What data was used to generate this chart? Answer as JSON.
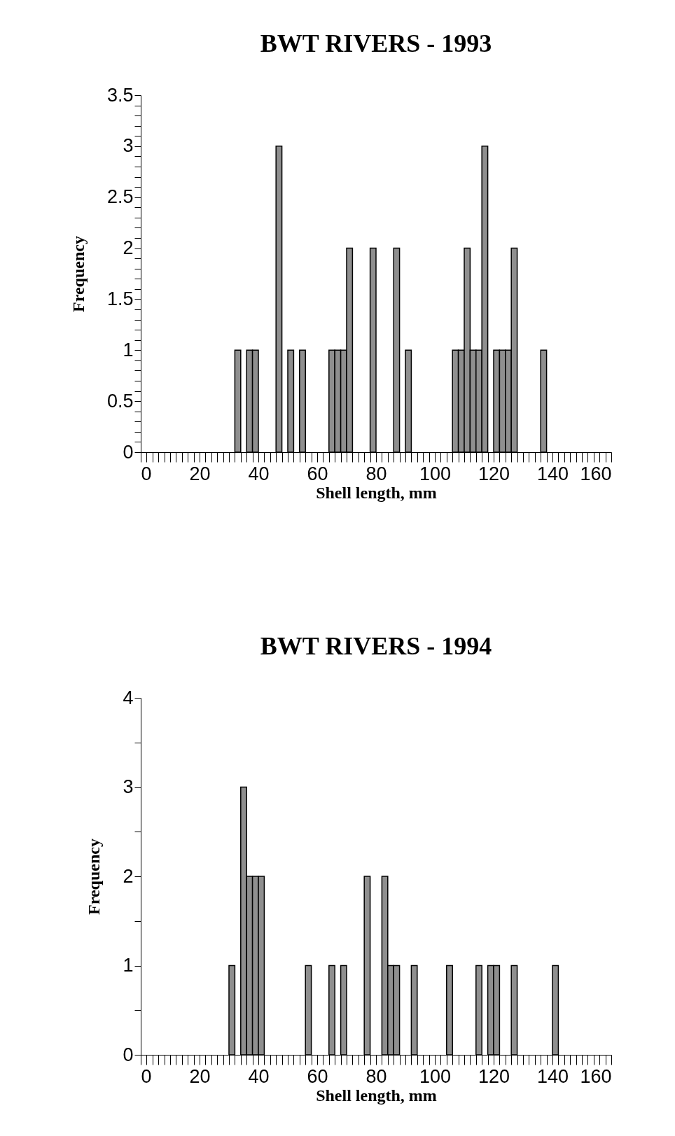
{
  "chart_data": [
    {
      "type": "histogram",
      "title": "BWT  RIVERS  -  1993",
      "xlabel": "Shell  length,  mm",
      "ylabel": "Frequency",
      "color": "#8f8f8f",
      "bins": [
        0,
        2,
        4,
        6,
        8,
        10,
        12,
        14,
        16,
        18,
        20,
        22,
        24,
        26,
        28,
        30,
        32,
        34,
        36,
        38,
        40,
        42,
        44,
        46,
        48,
        50,
        52,
        54,
        56,
        58,
        60,
        62,
        64,
        66,
        68,
        70,
        72,
        74,
        76,
        78,
        80,
        82,
        84,
        86,
        88,
        90,
        92,
        94,
        96,
        98,
        100,
        102,
        104,
        106,
        108,
        110,
        112,
        114,
        116,
        118,
        120,
        122,
        124,
        126,
        128,
        130,
        132,
        134,
        136,
        138,
        140,
        142,
        144,
        146,
        148,
        150,
        152,
        154,
        156,
        158,
        160
      ],
      "values": [
        0,
        0,
        0,
        0,
        0,
        0,
        0,
        0,
        0,
        0,
        0,
        0,
        0,
        0,
        0,
        0,
        1,
        0,
        1,
        1,
        0,
        0,
        0,
        3,
        0,
        1,
        0,
        1,
        0,
        0,
        0,
        0,
        1,
        1,
        1,
        2,
        0,
        0,
        0,
        2,
        0,
        0,
        0,
        2,
        0,
        1,
        0,
        0,
        0,
        0,
        0,
        0,
        0,
        1,
        1,
        2,
        1,
        1,
        3,
        0,
        1,
        1,
        1,
        2,
        0,
        0,
        0,
        0,
        1,
        0,
        0,
        0,
        0,
        0,
        0,
        0,
        0,
        0,
        0,
        0
      ],
      "xlim": [
        0,
        160
      ],
      "ylim": [
        0,
        3.5
      ],
      "xticks": [
        0,
        {
          "value": 2,
          "label": null
        },
        {
          "value": 4,
          "label": null
        },
        {
          "value": 6,
          "label": null
        },
        {
          "value": 8,
          "label": null
        },
        {
          "value": 10,
          "label": null
        },
        {
          "value": 12,
          "label": null
        },
        {
          "value": 14,
          "label": null
        },
        {
          "value": 16,
          "label": null
        },
        {
          "value": 18,
          "label": null
        },
        20,
        {
          "value": 22,
          "label": null
        },
        {
          "value": 24,
          "label": null
        },
        {
          "value": 26,
          "label": null
        },
        {
          "value": 28,
          "label": null
        },
        {
          "value": 30,
          "label": null
        },
        {
          "value": 32,
          "label": null
        },
        {
          "value": 34,
          "label": null
        },
        {
          "value": 36,
          "label": null
        },
        {
          "value": 38,
          "label": null
        },
        40,
        {
          "value": 42,
          "label": null
        },
        {
          "value": 44,
          "label": null
        },
        {
          "value": 46,
          "label": null
        },
        {
          "value": 48,
          "label": null
        },
        {
          "value": 50,
          "label": null
        },
        {
          "value": 52,
          "label": null
        },
        {
          "value": 54,
          "label": null
        },
        {
          "value": 56,
          "label": null
        },
        {
          "value": 58,
          "label": null
        },
        60,
        {
          "value": 62,
          "label": null
        },
        {
          "value": 64,
          "label": null
        },
        {
          "value": 66,
          "label": null
        },
        {
          "value": 68,
          "label": null
        },
        {
          "value": 70,
          "label": null
        },
        {
          "value": 72,
          "label": null
        },
        {
          "value": 74,
          "label": null
        },
        {
          "value": 76,
          "label": null
        },
        {
          "value": 78,
          "label": null
        },
        80,
        {
          "value": 82,
          "label": null
        },
        {
          "value": 84,
          "label": null
        },
        {
          "value": 86,
          "label": null
        },
        {
          "value": 88,
          "label": null
        },
        {
          "value": 90,
          "label": null
        },
        {
          "value": 92,
          "label": null
        },
        {
          "value": 94,
          "label": null
        },
        {
          "value": 96,
          "label": null
        },
        {
          "value": 98,
          "label": null
        },
        100,
        {
          "value": 102,
          "label": null
        },
        {
          "value": 104,
          "label": null
        },
        {
          "value": 106,
          "label": null
        },
        {
          "value": 108,
          "label": null
        },
        {
          "value": 110,
          "label": null
        },
        {
          "value": 112,
          "label": null
        },
        {
          "value": 114,
          "label": null
        },
        {
          "value": 116,
          "label": null
        },
        {
          "value": 118,
          "label": null
        },
        120,
        {
          "value": 122,
          "label": null
        },
        {
          "value": 124,
          "label": null
        },
        {
          "value": 126,
          "label": null
        },
        {
          "value": 128,
          "label": null
        },
        {
          "value": 130,
          "label": null
        },
        {
          "value": 132,
          "label": null
        },
        {
          "value": 134,
          "label": null
        },
        {
          "value": 136,
          "label": null
        },
        {
          "value": 138,
          "label": null
        },
        140,
        {
          "value": 142,
          "label": null
        },
        {
          "value": 144,
          "label": null
        },
        {
          "value": 146,
          "label": null
        },
        {
          "value": 148,
          "label": null
        },
        {
          "value": 150,
          "label": null
        },
        {
          "value": 152,
          "label": null
        },
        {
          "value": 154,
          "label": null
        },
        {
          "value": 156,
          "label": null
        },
        {
          "value": 158,
          "label": null
        },
        160
      ],
      "yticks": [
        0,
        {
          "value": 0.1,
          "label": null
        },
        {
          "value": 0.2,
          "label": null
        },
        {
          "value": 0.3,
          "label": null
        },
        {
          "value": 0.4,
          "label": null
        },
        0.5,
        {
          "value": 0.6,
          "label": null
        },
        {
          "value": 0.7,
          "label": null
        },
        {
          "value": 0.8,
          "label": null
        },
        {
          "value": 0.9,
          "label": null
        },
        1,
        {
          "value": 1.1,
          "label": null
        },
        {
          "value": 1.2,
          "label": null
        },
        {
          "value": 1.3,
          "label": null
        },
        {
          "value": 1.4,
          "label": null
        },
        1.5,
        {
          "value": 1.6,
          "label": null
        },
        {
          "value": 1.7,
          "label": null
        },
        {
          "value": 1.8,
          "label": null
        },
        {
          "value": 1.9,
          "label": null
        },
        2,
        {
          "value": 2.1,
          "label": null
        },
        {
          "value": 2.2,
          "label": null
        },
        {
          "value": 2.3,
          "label": null
        },
        {
          "value": 2.4,
          "label": null
        },
        2.5,
        {
          "value": 2.6,
          "label": null
        },
        {
          "value": 2.7,
          "label": null
        },
        {
          "value": 2.8,
          "label": null
        },
        {
          "value": 2.9,
          "label": null
        },
        3,
        {
          "value": 3.1,
          "label": null
        },
        {
          "value": 3.2,
          "label": null
        },
        {
          "value": 3.3,
          "label": null
        },
        {
          "value": 3.4,
          "label": null
        },
        3.5
      ]
    },
    {
      "type": "histogram",
      "title": "BWT  RIVERS  -  1994",
      "xlabel": "Shell  length,  mm",
      "ylabel": "Frequency",
      "color": "#8f8f8f",
      "bins": [
        0,
        2,
        4,
        6,
        8,
        10,
        12,
        14,
        16,
        18,
        20,
        22,
        24,
        26,
        28,
        30,
        32,
        34,
        36,
        38,
        40,
        42,
        44,
        46,
        48,
        50,
        52,
        54,
        56,
        58,
        60,
        62,
        64,
        66,
        68,
        70,
        72,
        74,
        76,
        78,
        80,
        82,
        84,
        86,
        88,
        90,
        92,
        94,
        96,
        98,
        100,
        102,
        104,
        106,
        108,
        110,
        112,
        114,
        116,
        118,
        120,
        122,
        124,
        126,
        128,
        130,
        132,
        134,
        136,
        138,
        140,
        142,
        144,
        146,
        148,
        150,
        152,
        154,
        156,
        158,
        160
      ],
      "values": [
        0,
        0,
        0,
        0,
        0,
        0,
        0,
        0,
        0,
        0,
        0,
        0,
        0,
        0,
        0,
        1,
        0,
        3,
        2,
        2,
        2,
        0,
        0,
        0,
        0,
        0,
        0,
        0,
        1,
        0,
        0,
        0,
        1,
        0,
        1,
        0,
        0,
        0,
        2,
        0,
        0,
        2,
        1,
        1,
        0,
        0,
        1,
        0,
        0,
        0,
        0,
        0,
        1,
        0,
        0,
        0,
        0,
        1,
        0,
        1,
        1,
        0,
        0,
        1,
        0,
        0,
        0,
        0,
        0,
        0,
        1,
        0,
        0,
        0,
        0,
        0,
        0,
        0,
        0,
        0
      ],
      "xlim": [
        0,
        160
      ],
      "ylim": [
        0,
        4
      ],
      "xticks": [
        0,
        {
          "value": 2,
          "label": null
        },
        {
          "value": 4,
          "label": null
        },
        {
          "value": 6,
          "label": null
        },
        {
          "value": 8,
          "label": null
        },
        {
          "value": 10,
          "label": null
        },
        {
          "value": 12,
          "label": null
        },
        {
          "value": 14,
          "label": null
        },
        {
          "value": 16,
          "label": null
        },
        {
          "value": 18,
          "label": null
        },
        20,
        {
          "value": 22,
          "label": null
        },
        {
          "value": 24,
          "label": null
        },
        {
          "value": 26,
          "label": null
        },
        {
          "value": 28,
          "label": null
        },
        {
          "value": 30,
          "label": null
        },
        {
          "value": 32,
          "label": null
        },
        {
          "value": 34,
          "label": null
        },
        {
          "value": 36,
          "label": null
        },
        {
          "value": 38,
          "label": null
        },
        40,
        {
          "value": 42,
          "label": null
        },
        {
          "value": 44,
          "label": null
        },
        {
          "value": 46,
          "label": null
        },
        {
          "value": 48,
          "label": null
        },
        {
          "value": 50,
          "label": null
        },
        {
          "value": 52,
          "label": null
        },
        {
          "value": 54,
          "label": null
        },
        {
          "value": 56,
          "label": null
        },
        {
          "value": 58,
          "label": null
        },
        60,
        {
          "value": 62,
          "label": null
        },
        {
          "value": 64,
          "label": null
        },
        {
          "value": 66,
          "label": null
        },
        {
          "value": 68,
          "label": null
        },
        {
          "value": 70,
          "label": null
        },
        {
          "value": 72,
          "label": null
        },
        {
          "value": 74,
          "label": null
        },
        {
          "value": 76,
          "label": null
        },
        {
          "value": 78,
          "label": null
        },
        80,
        {
          "value": 82,
          "label": null
        },
        {
          "value": 84,
          "label": null
        },
        {
          "value": 86,
          "label": null
        },
        {
          "value": 88,
          "label": null
        },
        {
          "value": 90,
          "label": null
        },
        {
          "value": 92,
          "label": null
        },
        {
          "value": 94,
          "label": null
        },
        {
          "value": 96,
          "label": null
        },
        {
          "value": 98,
          "label": null
        },
        100,
        {
          "value": 102,
          "label": null
        },
        {
          "value": 104,
          "label": null
        },
        {
          "value": 106,
          "label": null
        },
        {
          "value": 108,
          "label": null
        },
        {
          "value": 110,
          "label": null
        },
        {
          "value": 112,
          "label": null
        },
        {
          "value": 114,
          "label": null
        },
        {
          "value": 116,
          "label": null
        },
        {
          "value": 118,
          "label": null
        },
        120,
        {
          "value": 122,
          "label": null
        },
        {
          "value": 124,
          "label": null
        },
        {
          "value": 126,
          "label": null
        },
        {
          "value": 128,
          "label": null
        },
        {
          "value": 130,
          "label": null
        },
        {
          "value": 132,
          "label": null
        },
        {
          "value": 134,
          "label": null
        },
        {
          "value": 136,
          "label": null
        },
        {
          "value": 138,
          "label": null
        },
        140,
        {
          "value": 142,
          "label": null
        },
        {
          "value": 144,
          "label": null
        },
        {
          "value": 146,
          "label": null
        },
        {
          "value": 148,
          "label": null
        },
        {
          "value": 150,
          "label": null
        },
        {
          "value": 152,
          "label": null
        },
        {
          "value": 154,
          "label": null
        },
        {
          "value": 156,
          "label": null
        },
        {
          "value": 158,
          "label": null
        },
        160
      ],
      "yticks": [
        0,
        {
          "value": 0.5,
          "label": null
        },
        1,
        {
          "value": 1.5,
          "label": null
        },
        2,
        {
          "value": 2.5,
          "label": null
        },
        3,
        {
          "value": 3.5,
          "label": null
        },
        4
      ]
    }
  ]
}
